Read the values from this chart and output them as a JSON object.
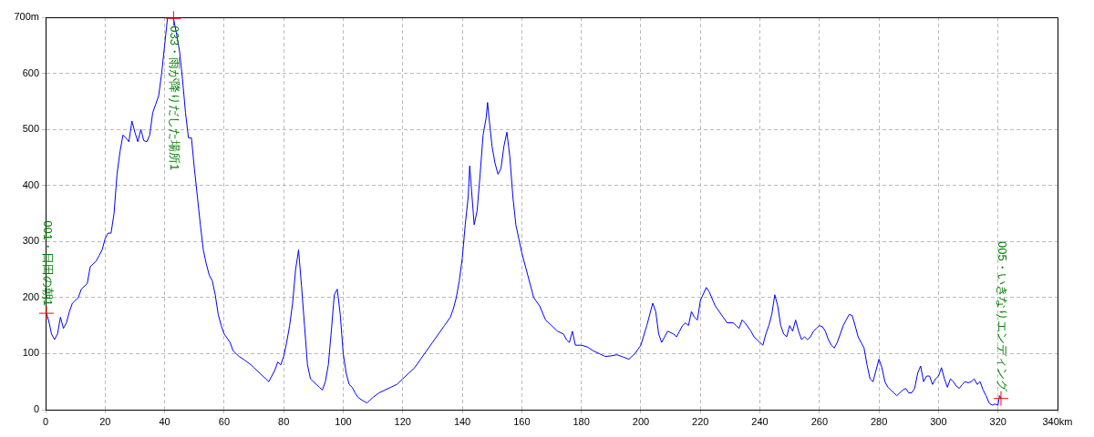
{
  "chart_data": {
    "type": "line",
    "xlim": [
      0,
      340
    ],
    "ylim": [
      0,
      700
    ],
    "xticks": [
      0,
      20,
      40,
      60,
      80,
      100,
      120,
      140,
      160,
      180,
      200,
      220,
      240,
      260,
      280,
      300,
      320,
      {
        "value": 340,
        "label": "340km"
      }
    ],
    "yticks": [
      0,
      100,
      200,
      300,
      400,
      500,
      600,
      {
        "value": 700,
        "label": "700m"
      }
    ],
    "grid": true,
    "legend": false,
    "marker": "none",
    "line_style": "solid",
    "annotations": [
      {
        "text": "001・日田の朝1",
        "x": 0.3,
        "y": 172
      },
      {
        "text": "033・雨が降りだした場所1",
        "x": 43,
        "y": 698
      },
      {
        "text": "005・いきなりエンディング",
        "x": 321,
        "y": 20
      }
    ],
    "series": [
      {
        "color": "#0000ff",
        "x": [
          0.3,
          1,
          2,
          3,
          4,
          5,
          6,
          7,
          8,
          9,
          10,
          11,
          12,
          14,
          15,
          17,
          18,
          19,
          20,
          21,
          22,
          23,
          24,
          25,
          26,
          27,
          28,
          29,
          30,
          31,
          32,
          33,
          34,
          35,
          36,
          37,
          38,
          39,
          40,
          41,
          42,
          43,
          44,
          45,
          46,
          47,
          48,
          49,
          50,
          51,
          52,
          53,
          54,
          55,
          56,
          57,
          58,
          59,
          60,
          62,
          63,
          65,
          67,
          69,
          70,
          72,
          74,
          75,
          76,
          77,
          78,
          79,
          80,
          81,
          82,
          83,
          84,
          85,
          86,
          87,
          88,
          89,
          90,
          91,
          92,
          93,
          94,
          95,
          96,
          97,
          98,
          99,
          100,
          101,
          102,
          103,
          104,
          105,
          106,
          107,
          108,
          109,
          110,
          112,
          114,
          116,
          118,
          120,
          122,
          124,
          126,
          128,
          130,
          132,
          134,
          136,
          137,
          138,
          139,
          140,
          141,
          142,
          142.5,
          143,
          144,
          145,
          146,
          147,
          148,
          148.5,
          149,
          150,
          151,
          152,
          153,
          154,
          155,
          156,
          157,
          158,
          159,
          160,
          162,
          164,
          166,
          168,
          170,
          172,
          174,
          175,
          176,
          177,
          178,
          180,
          182,
          184,
          186,
          188,
          190,
          192,
          194,
          196,
          198,
          200,
          202,
          204,
          205,
          206,
          207,
          208,
          209,
          211,
          212,
          213,
          214,
          215,
          216,
          217,
          218,
          219,
          220,
          222,
          223,
          225,
          227,
          229,
          231,
          232,
          233,
          234,
          235,
          237,
          238,
          239,
          240,
          241,
          242,
          243,
          244,
          245,
          246,
          247,
          248,
          249,
          250,
          251,
          252,
          253,
          254,
          255,
          256,
          257,
          258,
          259,
          260,
          261,
          262,
          263,
          264,
          265,
          266,
          267,
          268,
          269,
          270,
          271,
          272,
          273,
          274,
          275,
          276,
          277,
          278,
          279,
          280,
          281,
          282,
          283,
          284,
          285,
          286,
          287,
          288,
          289,
          290,
          291,
          292,
          293,
          294,
          295,
          296,
          297,
          298,
          299,
          300,
          301,
          302,
          303,
          304,
          305,
          306,
          307,
          308,
          309,
          310,
          311,
          312,
          313,
          314,
          315,
          316,
          317,
          318,
          319,
          320,
          320.5,
          321
        ],
        "values": [
          172,
          160,
          135,
          125,
          135,
          165,
          145,
          155,
          175,
          190,
          195,
          200,
          215,
          225,
          255,
          265,
          275,
          285,
          305,
          315,
          315,
          350,
          420,
          460,
          490,
          485,
          478,
          515,
          495,
          478,
          500,
          480,
          478,
          490,
          530,
          545,
          560,
          600,
          650,
          700,
          700,
          698,
          670,
          640,
          590,
          530,
          485,
          485,
          430,
          380,
          330,
          285,
          260,
          240,
          230,
          205,
          170,
          150,
          135,
          120,
          105,
          95,
          88,
          80,
          75,
          65,
          55,
          50,
          60,
          70,
          85,
          80,
          95,
          120,
          150,
          190,
          250,
          285,
          220,
          150,
          80,
          55,
          50,
          45,
          40,
          35,
          50,
          80,
          140,
          205,
          215,
          170,
          100,
          65,
          45,
          40,
          30,
          22,
          18,
          15,
          12,
          17,
          22,
          30,
          35,
          40,
          45,
          55,
          65,
          75,
          90,
          105,
          120,
          135,
          150,
          165,
          180,
          200,
          230,
          270,
          330,
          380,
          435,
          400,
          330,
          355,
          420,
          490,
          520,
          548,
          520,
          470,
          440,
          420,
          430,
          470,
          495,
          450,
          380,
          330,
          305,
          280,
          240,
          200,
          185,
          160,
          150,
          140,
          135,
          125,
          120,
          140,
          115,
          115,
          112,
          105,
          100,
          95,
          96,
          98,
          94,
          90,
          100,
          115,
          150,
          190,
          175,
          135,
          120,
          130,
          140,
          135,
          130,
          140,
          150,
          155,
          150,
          175,
          165,
          160,
          195,
          218,
          210,
          185,
          170,
          155,
          155,
          150,
          145,
          160,
          155,
          140,
          130,
          125,
          120,
          115,
          135,
          150,
          170,
          205,
          185,
          150,
          135,
          130,
          150,
          140,
          160,
          140,
          125,
          130,
          125,
          130,
          140,
          145,
          150,
          148,
          140,
          125,
          115,
          110,
          120,
          135,
          150,
          160,
          170,
          168,
          150,
          130,
          120,
          110,
          80,
          55,
          50,
          70,
          90,
          75,
          50,
          40,
          35,
          30,
          25,
          30,
          35,
          38,
          30,
          30,
          38,
          65,
          78,
          50,
          60,
          60,
          45,
          55,
          60,
          75,
          55,
          40,
          55,
          50,
          42,
          38,
          45,
          50,
          48,
          50,
          55,
          45,
          50,
          35,
          25,
          12,
          8,
          10,
          8,
          25,
          20
        ]
      }
    ]
  }
}
